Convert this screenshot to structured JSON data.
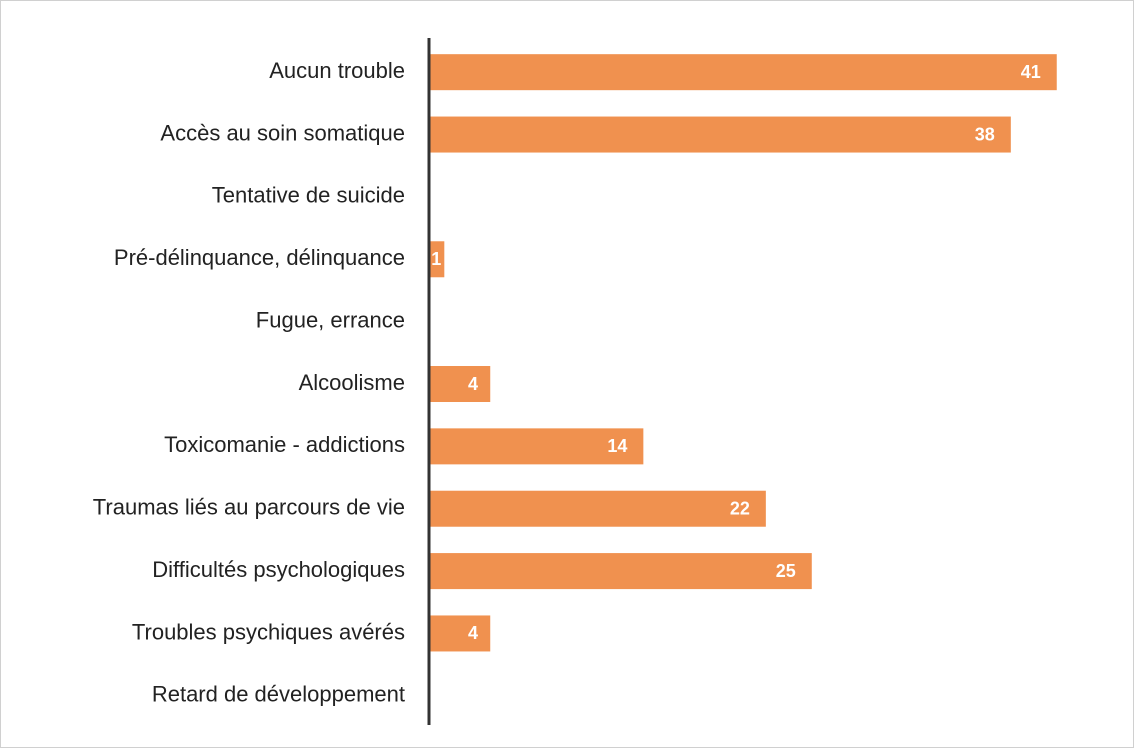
{
  "chart_data": {
    "type": "bar",
    "orientation": "horizontal",
    "categories": [
      "Aucun trouble",
      "Accès au soin somatique",
      "Tentative de suicide",
      "Pré-délinquance, délinquance",
      "Fugue, errance",
      "Alcoolisme",
      "Toxicomanie - addictions",
      "Traumas liés au parcours de vie",
      "Difficultés psychologiques",
      "Troubles psychiques avérés",
      "Retard de développement"
    ],
    "values": [
      41,
      38,
      null,
      1,
      null,
      4,
      14,
      22,
      25,
      4,
      null
    ],
    "color": "#f0914f",
    "xlim": [
      0,
      45
    ]
  }
}
